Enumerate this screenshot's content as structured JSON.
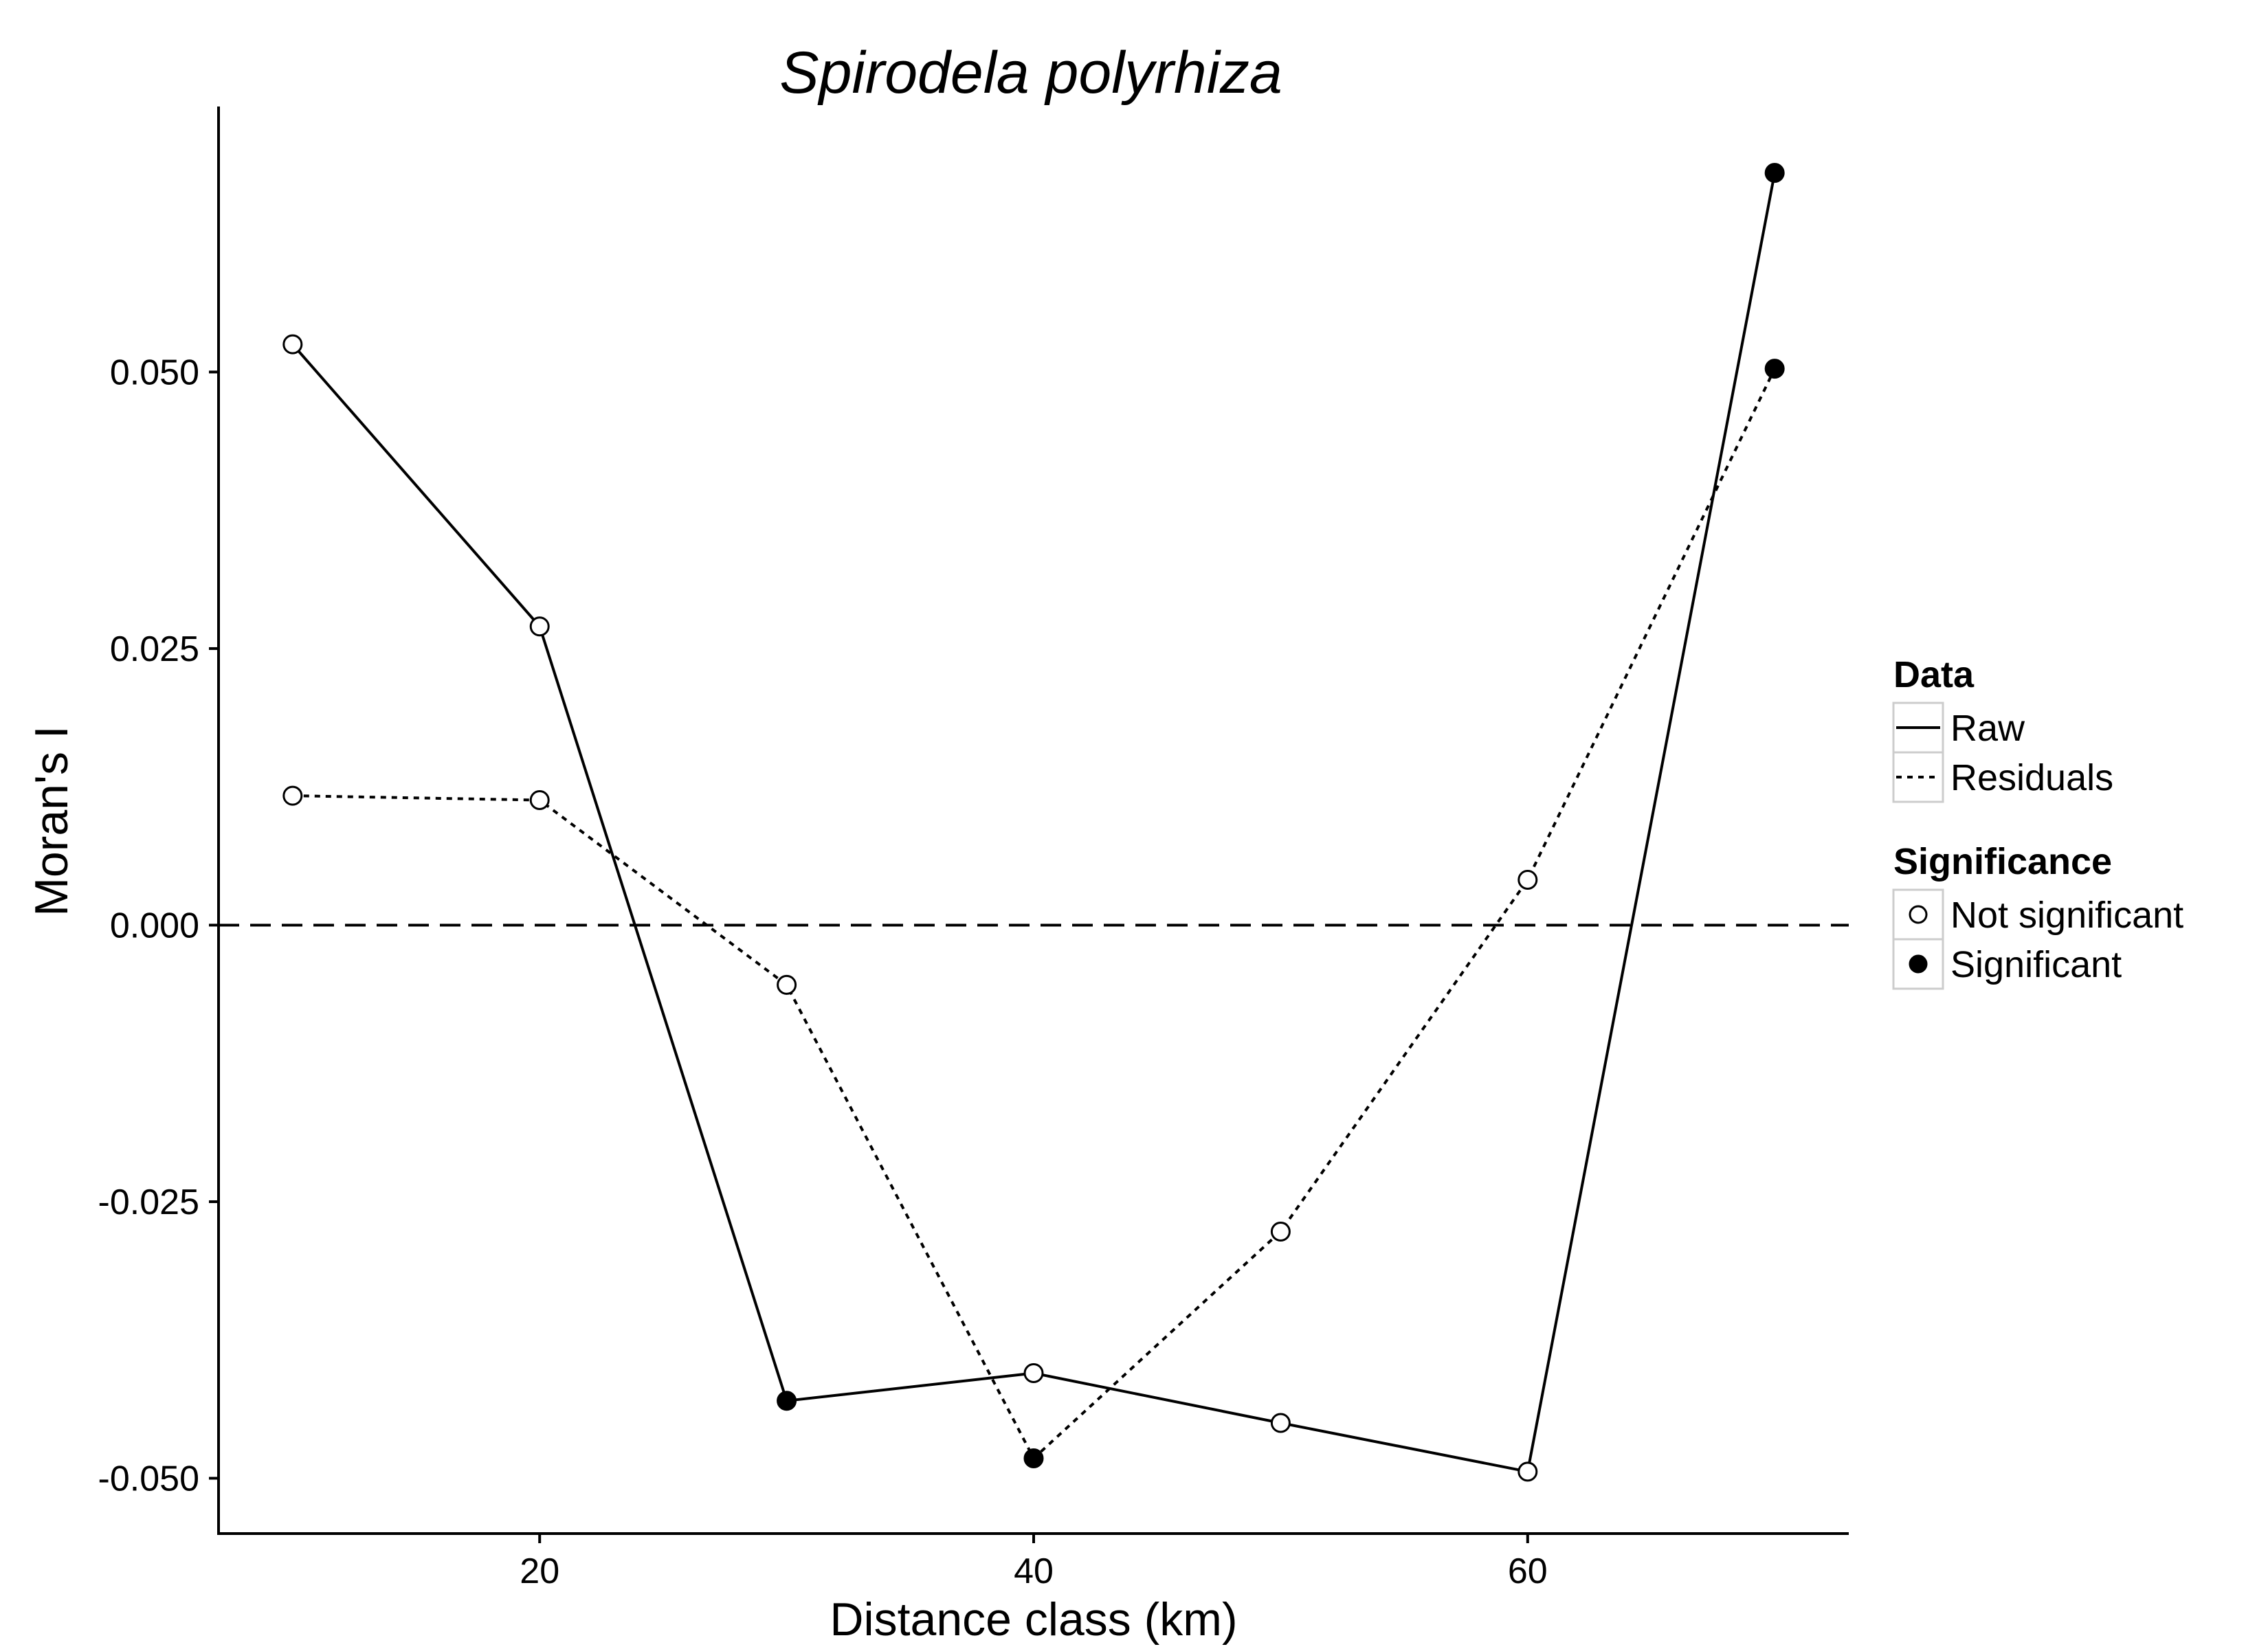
{
  "chart_data": {
    "type": "line",
    "title": "Spirodela polyrhiza",
    "xlabel": "Distance class (km)",
    "ylabel": "Moran's I",
    "xlim": [
      7,
      73
    ],
    "ylim": [
      -0.055,
      0.074
    ],
    "x_ticks": [
      20,
      40,
      60
    ],
    "x_tick_labels": [
      "20",
      "40",
      "60"
    ],
    "y_ticks": [
      -0.05,
      -0.025,
      0.0,
      0.025,
      0.05
    ],
    "y_tick_labels": [
      "-0.050",
      "-0.025",
      "0.000",
      "0.025",
      "0.050"
    ],
    "reference_line": {
      "y": 0.0,
      "style": "dashed"
    },
    "grid": false,
    "legend_placement": "right",
    "series": [
      {
        "name": "Raw",
        "linetype": "solid",
        "points": [
          {
            "x": 10,
            "y": 0.0525,
            "significant": false
          },
          {
            "x": 20,
            "y": 0.027,
            "significant": false
          },
          {
            "x": 30,
            "y": -0.043,
            "significant": true
          },
          {
            "x": 40,
            "y": -0.0405,
            "significant": false
          },
          {
            "x": 50,
            "y": -0.045,
            "significant": false
          },
          {
            "x": 60,
            "y": -0.0494,
            "significant": false
          },
          {
            "x": 70,
            "y": 0.068,
            "significant": true
          }
        ]
      },
      {
        "name": "Residuals",
        "linetype": "dotted",
        "points": [
          {
            "x": 10,
            "y": 0.0117,
            "significant": false
          },
          {
            "x": 20,
            "y": 0.0113,
            "significant": false
          },
          {
            "x": 30,
            "y": -0.0054,
            "significant": false
          },
          {
            "x": 40,
            "y": -0.0482,
            "significant": true
          },
          {
            "x": 50,
            "y": -0.0277,
            "significant": false
          },
          {
            "x": 60,
            "y": 0.0041,
            "significant": false
          },
          {
            "x": 70,
            "y": 0.0503,
            "significant": true
          }
        ]
      }
    ],
    "legend": {
      "data_title": "Data",
      "data_items": [
        {
          "label": "Raw",
          "linetype": "solid"
        },
        {
          "label": "Residuals",
          "linetype": "dotted"
        }
      ],
      "significance_title": "Significance",
      "significance_items": [
        {
          "label": "Not significant",
          "fill": "open"
        },
        {
          "label": "Significant",
          "fill": "filled"
        }
      ]
    },
    "colors": {
      "line": "#000000",
      "marker_open_fill": "#ffffff",
      "marker_filled_fill": "#000000",
      "legend_key_border": "#cccccc"
    }
  }
}
